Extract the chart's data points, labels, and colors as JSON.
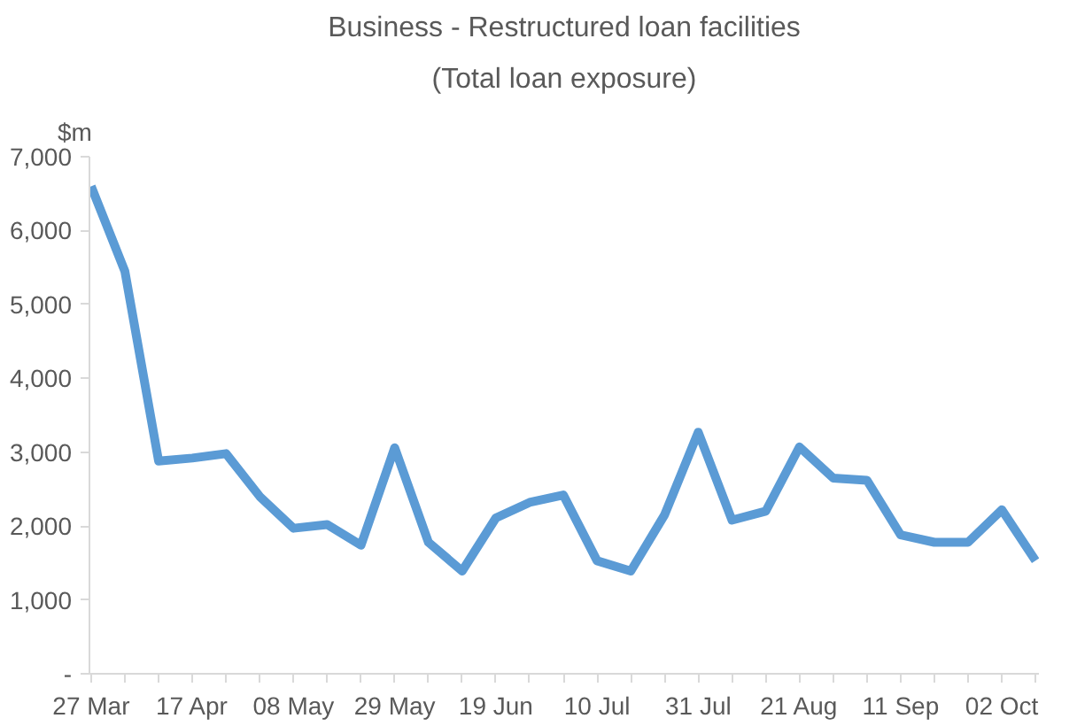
{
  "chart_data": {
    "type": "line",
    "title": "Business - Restructured loan facilities",
    "subtitle": "(Total loan exposure)",
    "ylabel": "$m",
    "categories": [
      "27 Mar",
      null,
      null,
      "17 Apr",
      null,
      null,
      "08 May",
      null,
      null,
      "29 May",
      null,
      null,
      "19 Jun",
      null,
      null,
      "10 Jul",
      null,
      null,
      "31 Jul",
      null,
      null,
      "21 Aug",
      null,
      null,
      "11 Sep",
      null,
      null,
      "02 Oct",
      null
    ],
    "series": [
      {
        "color": "#5b9bd5",
        "values": [
          6600,
          5450,
          2880,
          2920,
          2980,
          2400,
          1970,
          2020,
          1740,
          3060,
          1780,
          1390,
          2110,
          2320,
          2420,
          1530,
          1390,
          2150,
          3270,
          2080,
          2200,
          3070,
          2650,
          2620,
          1880,
          1780,
          1780,
          2220,
          1530
        ]
      }
    ],
    "ylim": [
      0,
      7000
    ],
    "yticks": [
      {
        "value": 0,
        "label": "-"
      },
      {
        "value": 1000,
        "label": "1,000"
      },
      {
        "value": 2000,
        "label": "2,000"
      },
      {
        "value": 3000,
        "label": "3,000"
      },
      {
        "value": 4000,
        "label": "4,000"
      },
      {
        "value": 5000,
        "label": "5,000"
      },
      {
        "value": 6000,
        "label": "6,000"
      },
      {
        "value": 7000,
        "label": "7,000"
      }
    ],
    "grid": false,
    "marker": "none",
    "line_style": "solid"
  }
}
